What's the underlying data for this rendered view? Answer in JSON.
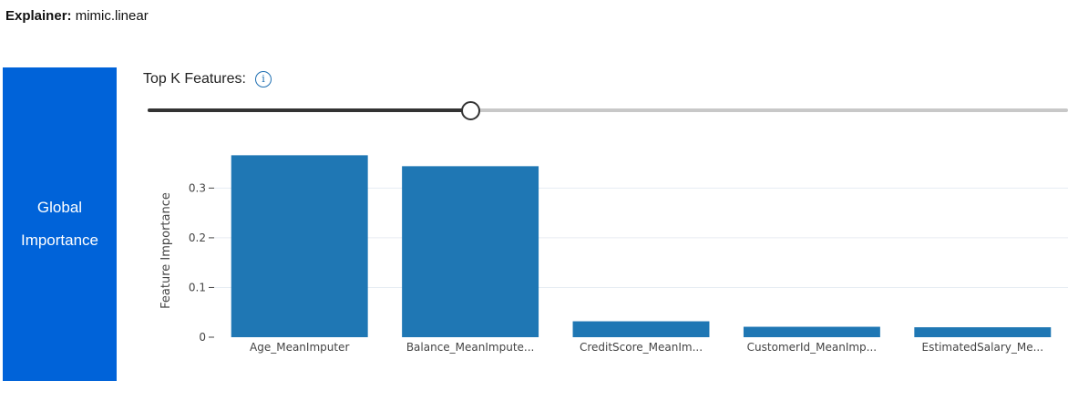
{
  "explainer": {
    "label": "Explainer:",
    "value": " mimic.linear"
  },
  "tab": {
    "line1": "Global",
    "line2": "Importance"
  },
  "topk": {
    "label": "Top K Features:",
    "info_icon": "info-icon",
    "value_fraction": 0.35
  },
  "colors": {
    "bar": "#1f77b4",
    "tab_bg": "#0063d9",
    "grid": "#e6ecf2"
  },
  "chart_data": {
    "type": "bar",
    "categories": [
      "Age_MeanImputer",
      "Balance_MeanImpute...",
      "CreditScore_MeanIm...",
      "CustomerId_MeanImp...",
      "EstimatedSalary_Me..."
    ],
    "values": [
      0.366,
      0.344,
      0.032,
      0.021,
      0.02
    ],
    "ylabel": "Feature Importance",
    "yticks": [
      0,
      0.1,
      0.2,
      0.3
    ],
    "ytick_labels": [
      "0",
      "0.1",
      "0.2",
      "0.3"
    ],
    "ylim": [
      0,
      0.385
    ],
    "grid": true
  }
}
